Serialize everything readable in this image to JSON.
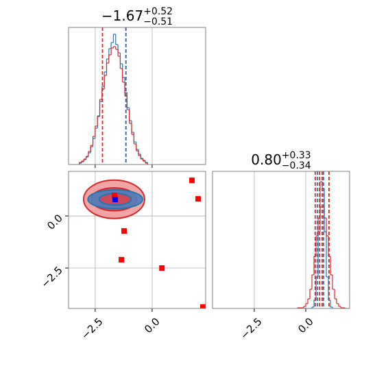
{
  "chart_data": [
    {
      "type": "histogram",
      "title": {
        "value": "−1.67",
        "upper": "+0.52",
        "lower": "−0.51"
      },
      "xlim": [
        -3.67,
        2.35
      ],
      "ylim": [
        0,
        200
      ],
      "xticks": [
        -2.5,
        0
      ],
      "xtick_labels": false,
      "grid": true,
      "bins": [
        -3.2,
        -3.1,
        -3.0,
        -2.9,
        -2.8,
        -2.7,
        -2.6,
        -2.5,
        -2.4,
        -2.3,
        -2.2,
        -2.1,
        -2.0,
        -1.9,
        -1.8,
        -1.7,
        -1.6,
        -1.5,
        -1.4,
        -1.3,
        -1.2,
        -1.1,
        -1.0,
        -0.9,
        -0.8,
        -0.7,
        -0.6,
        -0.5,
        -0.4,
        -0.3,
        -0.2
      ],
      "series": [
        {
          "color": "#1f77b4",
          "values": [
            2,
            4,
            7,
            11,
            17,
            26,
            38,
            53,
            71,
            92,
            114,
            135,
            154,
            169,
            178,
            190,
            175,
            163,
            147,
            127,
            105,
            83,
            64,
            47,
            33,
            22,
            15,
            9,
            6,
            3
          ]
        },
        {
          "color": "#d62728",
          "values": [
            3,
            5,
            8,
            12,
            19,
            28,
            41,
            56,
            70,
            95,
            110,
            130,
            148,
            160,
            170,
            172,
            168,
            158,
            140,
            120,
            100,
            80,
            60,
            44,
            30,
            20,
            13,
            8,
            5,
            2
          ]
        }
      ],
      "lines": [
        {
          "color": "#d62728",
          "values": [
            -2.18,
            -1.15
          ]
        },
        {
          "color": "#1f77b4",
          "values": [
            -1.15
          ]
        }
      ]
    },
    {
      "type": "scatter",
      "xlim": [
        -3.67,
        2.35
      ],
      "ylim": [
        -4.44,
        2.14
      ],
      "xticks": [
        {
          "value": -2.5,
          "label": "−2.5"
        },
        {
          "value": 0,
          "label": "0.0"
        }
      ],
      "yticks": [
        {
          "value": -2.5,
          "label": "−2.5"
        },
        {
          "value": 0,
          "label": "0.0"
        }
      ],
      "grid": true,
      "contours": [
        {
          "color": "#d62728",
          "fill": "#f29a9a",
          "center": [
            -1.67,
            0.8
          ],
          "radii": [
            1.34,
            0.92
          ]
        },
        {
          "color": "#d62728",
          "fill": "#e8474a",
          "center": [
            -1.67,
            0.8
          ],
          "radii": [
            1.0,
            0.55
          ]
        },
        {
          "color": "#1f77b4",
          "fill": "#4f7fbf",
          "center": [
            -1.62,
            0.8
          ],
          "radii": [
            1.2,
            0.45
          ]
        },
        {
          "color": "#1f77b4",
          "fill": "#d9434f",
          "center": [
            -1.62,
            0.8
          ],
          "radii": [
            0.7,
            0.28
          ]
        }
      ],
      "series": [
        {
          "color": "#ff0000",
          "x": [
            1.75,
            2.02,
            -1.23,
            -1.35,
            0.43,
            2.23,
            -1.65
          ],
          "y": [
            1.71,
            0.82,
            -0.72,
            -2.1,
            -2.5,
            -4.37,
            0.99
          ]
        },
        {
          "color": "#0000ff",
          "x": [
            -1.62
          ],
          "y": [
            0.79
          ]
        }
      ]
    },
    {
      "type": "histogram",
      "title": {
        "value": "0.80",
        "upper": "+0.33",
        "lower": "−0.34"
      },
      "xlim": [
        -4.53,
        2.13
      ],
      "ylim": [
        0,
        200
      ],
      "xticks": [
        {
          "value": -2.5,
          "label": "−2.5"
        },
        {
          "value": 0,
          "label": "0.0"
        }
      ],
      "xtick_labels": true,
      "grid": true,
      "bins": [
        -0.4,
        -0.3,
        -0.2,
        -0.1,
        0.0,
        0.1,
        0.2,
        0.3,
        0.4,
        0.5,
        0.6,
        0.7,
        0.8,
        0.9,
        1.0,
        1.1,
        1.2,
        1.3,
        1.4,
        1.5,
        1.6,
        1.7,
        1.8,
        1.9,
        2.0
      ],
      "series": [
        {
          "color": "#1f77b4",
          "values": [
            0,
            0,
            0,
            0,
            0,
            0,
            0,
            2,
            12,
            46,
            112,
            185,
            175,
            112,
            46,
            12,
            2,
            0,
            0,
            0,
            0,
            0,
            0,
            0
          ]
        },
        {
          "color": "#d62728",
          "values": [
            1,
            1,
            1,
            3,
            7,
            14,
            28,
            49,
            76,
            106,
            132,
            148,
            148,
            132,
            106,
            76,
            49,
            28,
            14,
            7,
            3,
            1,
            1,
            0
          ]
        }
      ],
      "lines": [
        {
          "color": "#d62728",
          "values": [
            0.46,
            0.67,
            0.8,
            1.13
          ]
        },
        {
          "color": "#1f77b4",
          "values": [
            0.57,
            0.87
          ]
        }
      ]
    }
  ]
}
